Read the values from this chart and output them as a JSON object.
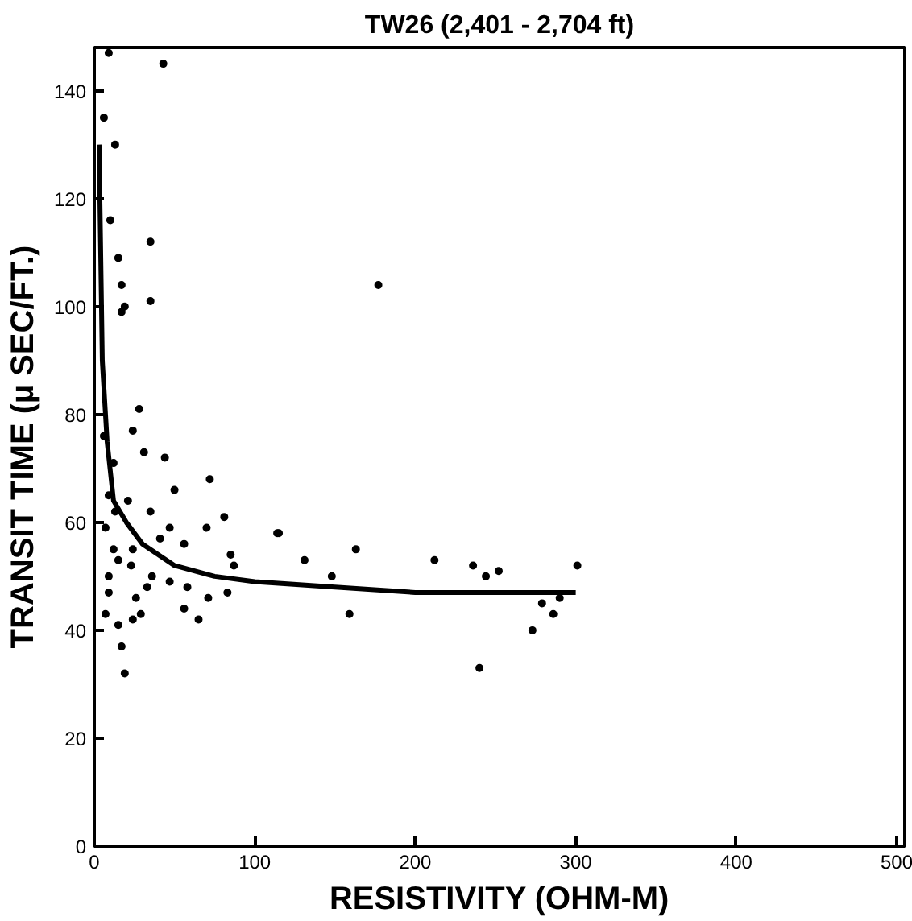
{
  "chart_data": {
    "type": "scatter",
    "title": "TW26 (2,401 - 2,704 ft)",
    "xlabel": "RESISTIVITY (OHM-M)",
    "ylabel": "TRANSIT TIME (µ SEC/FT.)",
    "xlim": [
      0,
      505
    ],
    "ylim": [
      0,
      148
    ],
    "xticks": [
      0,
      100,
      200,
      300,
      400,
      500
    ],
    "yticks": [
      0,
      20,
      40,
      60,
      80,
      100,
      120,
      140
    ],
    "grid": false,
    "marker": "circle",
    "series": [
      {
        "color": "#000000",
        "x": [
          9,
          43,
          6,
          13,
          10,
          35,
          15,
          17,
          35,
          19,
          17,
          28,
          24,
          31,
          44,
          72,
          50,
          81,
          114,
          70,
          35,
          85,
          87,
          56,
          47,
          41,
          24,
          15,
          23,
          47,
          58,
          71,
          83,
          9,
          26,
          56,
          65,
          29,
          24,
          7,
          15,
          17,
          19,
          36,
          9,
          33,
          12,
          7,
          13,
          21,
          12,
          6,
          9,
          177,
          115,
          131,
          163,
          148,
          159,
          212,
          236,
          244,
          252,
          301,
          279,
          290,
          286,
          273,
          240
        ],
        "values": [
          147,
          145,
          135,
          130,
          116,
          112,
          109,
          104,
          101,
          100,
          99,
          81,
          77,
          73,
          72,
          68,
          66,
          61,
          58,
          59,
          62,
          54,
          52,
          56,
          59,
          57,
          55,
          53,
          52,
          49,
          48,
          46,
          47,
          47,
          46,
          44,
          42,
          43,
          42,
          43,
          41,
          37,
          32,
          50,
          50,
          48,
          55,
          59,
          62,
          64,
          71,
          76,
          65,
          104,
          58,
          53,
          55,
          50,
          43,
          53,
          52,
          50,
          51,
          52,
          45,
          46,
          43,
          40,
          33
        ]
      },
      {
        "type": "line",
        "marker": "none",
        "color": "#000000",
        "x": [
          3,
          5,
          8,
          12,
          20,
          30,
          50,
          75,
          100,
          150,
          200,
          250,
          300
        ],
        "values": [
          130,
          90,
          75,
          64,
          60,
          56,
          52,
          50,
          49,
          48,
          47,
          47,
          47
        ]
      }
    ]
  }
}
